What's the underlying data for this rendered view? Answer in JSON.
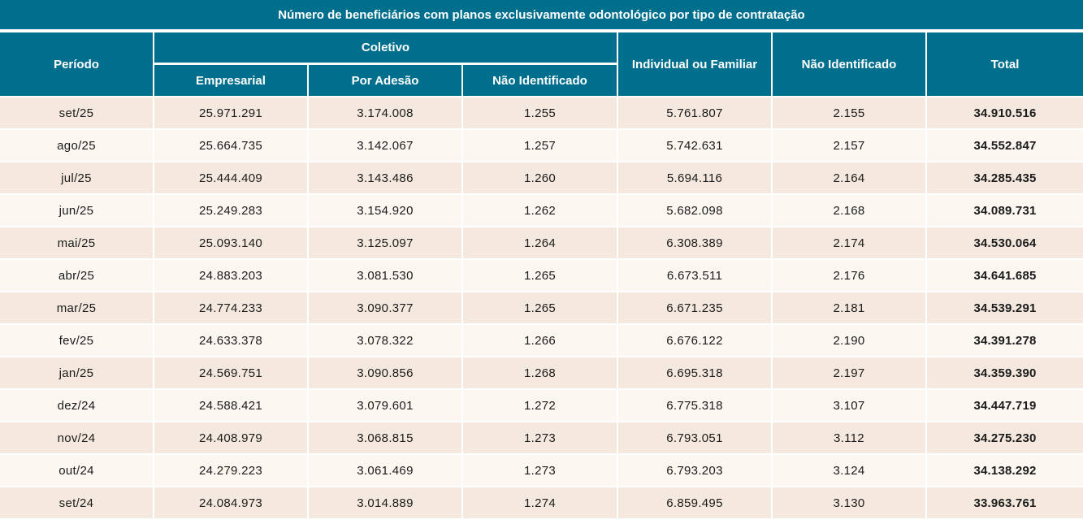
{
  "colors": {
    "teal": "#006F8E",
    "row_odd": "#F5E9DF",
    "row_even": "#FCF7F1",
    "cell_border": "#FFFFFF",
    "data_text": "#1B1B1B"
  },
  "chart_data": {
    "type": "table",
    "title": "Número de beneficiários com planos exclusivamente odontológico por tipo de contratação",
    "header": {
      "period": "Período",
      "coletivo_group": "Coletivo",
      "coletivo_subcolumns": [
        "Empresarial",
        "Por Adesão",
        "Não Identificado"
      ],
      "individual_ou_familiar": "Individual ou Familiar",
      "nao_identificado": "Não Identificado",
      "total": "Total"
    },
    "columns": [
      "Período",
      "Coletivo – Empresarial",
      "Coletivo – Por Adesão",
      "Coletivo – Não Identificado",
      "Individual ou Familiar",
      "Não Identificado",
      "Total"
    ],
    "rows": [
      [
        "set/25",
        "25.971.291",
        "3.174.008",
        "1.255",
        "5.761.807",
        "2.155",
        "34.910.516"
      ],
      [
        "ago/25",
        "25.664.735",
        "3.142.067",
        "1.257",
        "5.742.631",
        "2.157",
        "34.552.847"
      ],
      [
        "jul/25",
        "25.444.409",
        "3.143.486",
        "1.260",
        "5.694.116",
        "2.164",
        "34.285.435"
      ],
      [
        "jun/25",
        "25.249.283",
        "3.154.920",
        "1.262",
        "5.682.098",
        "2.168",
        "34.089.731"
      ],
      [
        "mai/25",
        "25.093.140",
        "3.125.097",
        "1.264",
        "6.308.389",
        "2.174",
        "34.530.064"
      ],
      [
        "abr/25",
        "24.883.203",
        "3.081.530",
        "1.265",
        "6.673.511",
        "2.176",
        "34.641.685"
      ],
      [
        "mar/25",
        "24.774.233",
        "3.090.377",
        "1.265",
        "6.671.235",
        "2.181",
        "34.539.291"
      ],
      [
        "fev/25",
        "24.633.378",
        "3.078.322",
        "1.266",
        "6.676.122",
        "2.190",
        "34.391.278"
      ],
      [
        "jan/25",
        "24.569.751",
        "3.090.856",
        "1.268",
        "6.695.318",
        "2.197",
        "34.359.390"
      ],
      [
        "dez/24",
        "24.588.421",
        "3.079.601",
        "1.272",
        "6.775.318",
        "3.107",
        "34.447.719"
      ],
      [
        "nov/24",
        "24.408.979",
        "3.068.815",
        "1.273",
        "6.793.051",
        "3.112",
        "34.275.230"
      ],
      [
        "out/24",
        "24.279.223",
        "3.061.469",
        "1.273",
        "6.793.203",
        "3.124",
        "34.138.292"
      ],
      [
        "set/24",
        "24.084.973",
        "3.014.889",
        "1.274",
        "6.859.495",
        "3.130",
        "33.963.761"
      ]
    ]
  }
}
